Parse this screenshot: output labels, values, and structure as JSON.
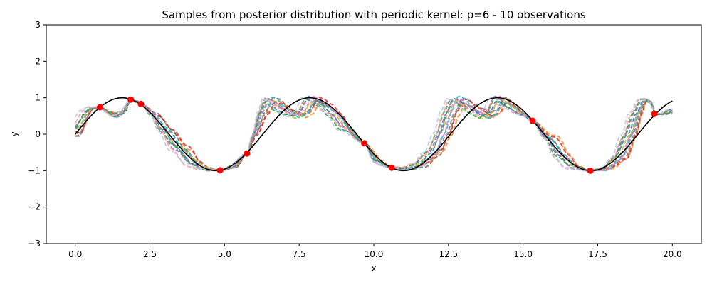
{
  "chart_data": {
    "type": "line",
    "title": "Samples from posterior distribution with periodic kernel: p=6 - 10 observations",
    "xlabel": "x",
    "ylabel": "y",
    "xlim": [
      -0.97,
      20.97
    ],
    "ylim": [
      -3,
      3
    ],
    "xticks": [
      0.0,
      2.5,
      5.0,
      7.5,
      10.0,
      12.5,
      15.0,
      17.5,
      20.0
    ],
    "xtick_labels": [
      "0.0",
      "2.5",
      "5.0",
      "7.5",
      "10.0",
      "12.5",
      "15.0",
      "17.5",
      "20.0"
    ],
    "yticks": [
      -3,
      -2,
      -1,
      0,
      1,
      2,
      3
    ],
    "ytick_labels": [
      "−3",
      "−2",
      "−1",
      "0",
      "1",
      "2",
      "3"
    ],
    "grid": false,
    "true_function": {
      "x_range": [
        0,
        20
      ],
      "expression": "sin(x)",
      "color": "#000000"
    },
    "posterior_mean_anchor": [
      [
        0.0,
        0.0
      ],
      [
        0.1,
        0.1
      ],
      [
        0.2,
        0.3
      ],
      [
        0.4,
        0.6
      ],
      [
        0.55,
        0.72
      ],
      [
        0.83,
        0.74
      ],
      [
        1.1,
        0.6
      ],
      [
        1.35,
        0.5
      ],
      [
        1.6,
        0.6
      ],
      [
        1.86,
        0.95
      ],
      [
        2.05,
        0.9
      ],
      [
        2.2,
        0.83
      ],
      [
        2.6,
        0.55
      ],
      [
        3.0,
        0.1
      ],
      [
        3.5,
        -0.4
      ],
      [
        4.0,
        -0.8
      ],
      [
        4.4,
        -0.95
      ],
      [
        4.85,
        -0.99
      ],
      [
        5.3,
        -0.9
      ],
      [
        5.75,
        -0.53
      ],
      [
        6.0,
        0.0
      ],
      [
        6.25,
        0.6
      ],
      [
        6.45,
        0.95
      ],
      [
        6.65,
        0.9
      ],
      [
        6.9,
        0.72
      ],
      [
        7.15,
        0.6
      ],
      [
        7.4,
        0.5
      ],
      [
        7.65,
        0.6
      ],
      [
        7.9,
        0.95
      ],
      [
        8.1,
        0.9
      ],
      [
        8.3,
        0.8
      ],
      [
        8.7,
        0.55
      ],
      [
        9.1,
        0.15
      ],
      [
        9.68,
        -0.25
      ],
      [
        10.1,
        -0.75
      ],
      [
        10.6,
        -0.92
      ],
      [
        11.05,
        -0.95
      ],
      [
        11.5,
        -0.85
      ],
      [
        12.0,
        -0.5
      ],
      [
        12.3,
        0.0
      ],
      [
        12.55,
        0.6
      ],
      [
        12.75,
        0.95
      ],
      [
        12.95,
        0.9
      ],
      [
        13.2,
        0.72
      ],
      [
        13.45,
        0.6
      ],
      [
        13.7,
        0.5
      ],
      [
        13.95,
        0.6
      ],
      [
        14.2,
        0.95
      ],
      [
        14.4,
        0.9
      ],
      [
        14.6,
        0.75
      ],
      [
        15.0,
        0.55
      ],
      [
        15.32,
        0.37
      ],
      [
        15.8,
        -0.1
      ],
      [
        16.3,
        -0.6
      ],
      [
        16.75,
        -0.9
      ],
      [
        17.25,
        -1.0
      ],
      [
        17.7,
        -0.95
      ],
      [
        18.2,
        -0.65
      ],
      [
        18.6,
        0.0
      ],
      [
        18.85,
        0.6
      ],
      [
        19.05,
        0.95
      ],
      [
        19.25,
        0.9
      ],
      [
        19.45,
        0.55
      ],
      [
        19.65,
        0.55
      ],
      [
        19.95,
        0.65
      ]
    ],
    "samples": {
      "count": 12,
      "colors": [
        "#ff7f0e",
        "#d62728",
        "#8c564b",
        "#7f7f7f",
        "#17becf",
        "#e377c2",
        "#bcbd22",
        "#1f77b4",
        "#9467bd",
        "#2ca02c",
        "#ff9896",
        "#aec7e8"
      ],
      "linestyle": "dashed"
    },
    "observations": {
      "color": "#ff0000",
      "points": [
        [
          0.83,
          0.74
        ],
        [
          1.86,
          0.95
        ],
        [
          2.2,
          0.83
        ],
        [
          4.85,
          -0.99
        ],
        [
          5.75,
          -0.53
        ],
        [
          9.68,
          -0.25
        ],
        [
          10.6,
          -0.92
        ],
        [
          15.32,
          0.37
        ],
        [
          17.25,
          -1.0
        ],
        [
          19.4,
          0.56
        ]
      ]
    }
  }
}
